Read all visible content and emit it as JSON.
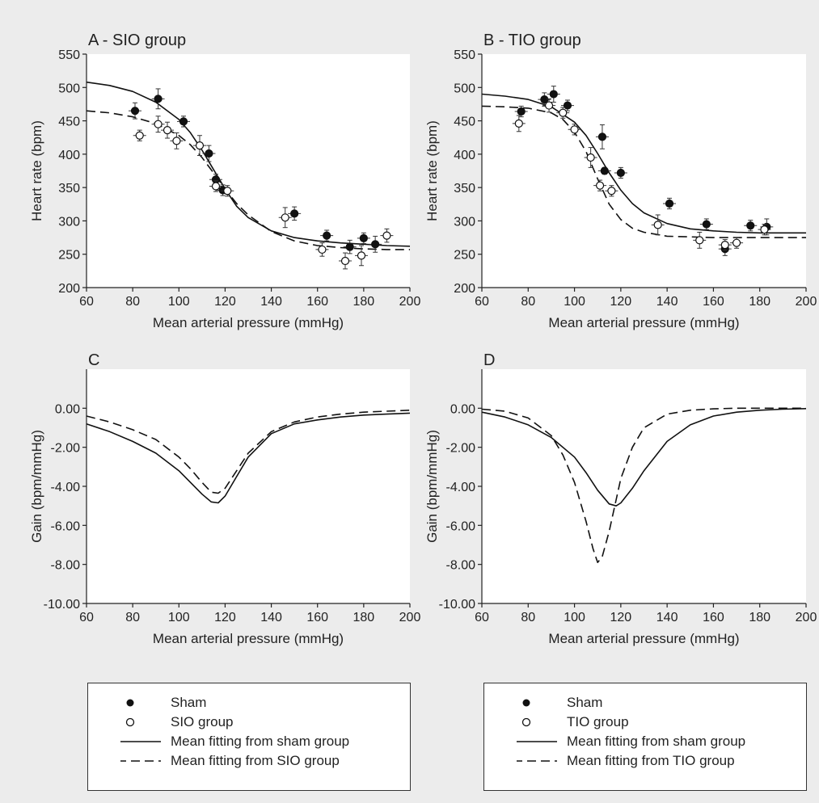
{
  "chart_data": [
    {
      "panel": "A",
      "type": "scatter",
      "title": "A - SIO group",
      "xlabel": "Mean arterial pressure (mmHg)",
      "ylabel": "Heart rate (bpm)",
      "xlim": [
        60,
        200
      ],
      "ylim": [
        200,
        550
      ],
      "xticks": [
        "60",
        "80",
        "100",
        "120",
        "140",
        "160",
        "180",
        "200"
      ],
      "yticks": [
        "200",
        "250",
        "300",
        "350",
        "400",
        "450",
        "500",
        "550"
      ],
      "series": [
        {
          "legend": "Sham",
          "marker": "filled-circle",
          "x": [
            81,
            91,
            102,
            113,
            116,
            119,
            150,
            164,
            174,
            180,
            185
          ],
          "y": [
            465,
            483,
            449,
            401,
            362,
            346,
            311,
            278,
            261,
            274,
            265
          ],
          "err": [
            12,
            15,
            8,
            12,
            8,
            8,
            10,
            8,
            10,
            8,
            12
          ]
        },
        {
          "legend": "SIO group",
          "marker": "open-circle",
          "x": [
            83,
            91,
            95,
            99,
            109,
            116,
            121,
            146,
            162,
            172,
            179,
            190
          ],
          "y": [
            428,
            445,
            436,
            420,
            413,
            352,
            345,
            305,
            257,
            240,
            248,
            278
          ],
          "err": [
            8,
            12,
            12,
            12,
            15,
            8,
            8,
            15,
            10,
            12,
            15,
            10
          ]
        },
        {
          "legend": "Mean fitting from sham group",
          "style": "solid",
          "x": [
            60,
            70,
            80,
            90,
            100,
            105,
            110,
            115,
            120,
            125,
            130,
            140,
            150,
            160,
            170,
            180,
            190,
            200
          ],
          "y": [
            508,
            503,
            494,
            478,
            452,
            432,
            406,
            377,
            348,
            322,
            305,
            285,
            275,
            270,
            267,
            265,
            263,
            262
          ]
        },
        {
          "legend": "Mean fitting from SIO group",
          "style": "dashed",
          "x": [
            60,
            70,
            80,
            90,
            100,
            105,
            110,
            115,
            120,
            125,
            130,
            140,
            150,
            160,
            170,
            180,
            190,
            200
          ],
          "y": [
            465,
            462,
            456,
            446,
            428,
            414,
            395,
            372,
            348,
            326,
            309,
            284,
            270,
            263,
            260,
            258,
            257,
            257
          ]
        }
      ]
    },
    {
      "panel": "B",
      "type": "scatter",
      "title": "B - TIO group",
      "xlabel": "Mean arterial pressure (mmHg)",
      "ylabel": "Heart rate (bpm)",
      "xlim": [
        60,
        200
      ],
      "ylim": [
        200,
        550
      ],
      "xticks": [
        "60",
        "80",
        "100",
        "120",
        "140",
        "160",
        "180",
        "200"
      ],
      "yticks": [
        "200",
        "250",
        "300",
        "350",
        "400",
        "450",
        "500",
        "550"
      ],
      "series": [
        {
          "legend": "Sham",
          "marker": "filled-circle",
          "x": [
            77,
            87,
            91,
            97,
            112,
            113,
            120,
            141,
            157,
            165,
            176,
            183
          ],
          "y": [
            464,
            482,
            490,
            473,
            426,
            375,
            372,
            326,
            295,
            258,
            293,
            291
          ],
          "err": [
            8,
            10,
            12,
            8,
            18,
            5,
            8,
            8,
            8,
            10,
            8,
            12
          ]
        },
        {
          "legend": "TIO group",
          "marker": "open-circle",
          "x": [
            76,
            89,
            95,
            100,
            107,
            111,
            116,
            136,
            154,
            165,
            170,
            182
          ],
          "y": [
            446,
            473,
            462,
            437,
            395,
            353,
            345,
            294,
            271,
            264,
            267,
            287
          ],
          "err": [
            12,
            10,
            8,
            8,
            15,
            8,
            8,
            15,
            12,
            8,
            8,
            8
          ]
        },
        {
          "legend": "Mean fitting from sham group",
          "style": "solid",
          "x": [
            60,
            70,
            80,
            90,
            100,
            105,
            110,
            115,
            120,
            125,
            130,
            140,
            150,
            160,
            170,
            180,
            190,
            200
          ],
          "y": [
            490,
            487,
            482,
            471,
            448,
            428,
            401,
            372,
            346,
            326,
            312,
            296,
            288,
            285,
            283,
            282,
            282,
            282
          ]
        },
        {
          "legend": "Mean fitting from TIO group",
          "style": "dashed",
          "x": [
            60,
            70,
            80,
            90,
            95,
            100,
            105,
            110,
            115,
            120,
            125,
            130,
            140,
            150,
            160,
            170,
            180,
            190,
            200
          ],
          "y": [
            472,
            471,
            469,
            462,
            452,
            433,
            404,
            363,
            325,
            302,
            289,
            283,
            277,
            276,
            275,
            275,
            275,
            275,
            275
          ]
        }
      ]
    },
    {
      "panel": "C",
      "type": "line",
      "title": "C",
      "xlabel": "Mean arterial pressure (mmHg)",
      "ylabel": "Gain (bpm/mmHg)",
      "xlim": [
        60,
        200
      ],
      "ylim": [
        -10,
        2
      ],
      "xticks": [
        "60",
        "80",
        "100",
        "120",
        "140",
        "160",
        "180",
        "200"
      ],
      "yticks": [
        "-10.00",
        "-8.00",
        "-6.00",
        "-4.00",
        "-2.00",
        "0.00"
      ],
      "series": [
        {
          "legend": "Mean fitting from sham group",
          "style": "solid",
          "x": [
            60,
            70,
            80,
            90,
            100,
            105,
            110,
            114,
            117,
            120,
            125,
            130,
            140,
            150,
            160,
            170,
            180,
            190,
            200
          ],
          "y": [
            -0.8,
            -1.2,
            -1.7,
            -2.3,
            -3.2,
            -3.8,
            -4.4,
            -4.8,
            -4.85,
            -4.5,
            -3.5,
            -2.5,
            -1.3,
            -0.8,
            -0.6,
            -0.45,
            -0.35,
            -0.3,
            -0.25
          ]
        },
        {
          "legend": "Mean fitting from SIO group",
          "style": "dashed",
          "x": [
            60,
            70,
            80,
            90,
            100,
            105,
            110,
            114,
            117,
            120,
            125,
            130,
            140,
            150,
            160,
            170,
            180,
            190,
            200
          ],
          "y": [
            -0.4,
            -0.7,
            -1.1,
            -1.6,
            -2.5,
            -3.1,
            -3.8,
            -4.3,
            -4.35,
            -4.1,
            -3.2,
            -2.3,
            -1.2,
            -0.7,
            -0.45,
            -0.3,
            -0.2,
            -0.15,
            -0.1
          ]
        }
      ]
    },
    {
      "panel": "D",
      "type": "line",
      "title": "D",
      "xlabel": "Mean arterial pressure (mmHg)",
      "ylabel": "Gain (bpm/mmHg)",
      "xlim": [
        60,
        200
      ],
      "ylim": [
        -10,
        2
      ],
      "xticks": [
        "60",
        "80",
        "100",
        "120",
        "140",
        "160",
        "180",
        "200"
      ],
      "yticks": [
        "-10.00",
        "-8.00",
        "-6.00",
        "-4.00",
        "-2.00",
        "0.00"
      ],
      "series": [
        {
          "legend": "Mean fitting from sham group",
          "style": "solid",
          "x": [
            60,
            70,
            80,
            90,
            100,
            105,
            110,
            115,
            118,
            120,
            125,
            130,
            140,
            150,
            160,
            170,
            180,
            190,
            200
          ],
          "y": [
            -0.2,
            -0.45,
            -0.85,
            -1.5,
            -2.5,
            -3.3,
            -4.2,
            -4.9,
            -5.0,
            -4.85,
            -4.1,
            -3.2,
            -1.7,
            -0.85,
            -0.4,
            -0.2,
            -0.1,
            -0.05,
            -0.02
          ]
        },
        {
          "legend": "Mean fitting from TIO group",
          "style": "dashed",
          "x": [
            60,
            70,
            80,
            90,
            95,
            100,
            105,
            108,
            110,
            112,
            115,
            120,
            125,
            130,
            140,
            150,
            160,
            170,
            180,
            190,
            200
          ],
          "y": [
            -0.05,
            -0.15,
            -0.5,
            -1.4,
            -2.4,
            -3.8,
            -5.8,
            -7.2,
            -7.9,
            -7.6,
            -6.3,
            -3.6,
            -2.0,
            -1.0,
            -0.3,
            -0.1,
            -0.03,
            0,
            0,
            0,
            0
          ]
        }
      ]
    }
  ],
  "legends": [
    {
      "items": [
        "Sham",
        "SIO group",
        "Mean fitting from sham group",
        "Mean fitting from SIO group"
      ]
    },
    {
      "items": [
        "Sham",
        "TIO group",
        "Mean fitting from sham group",
        "Mean fitting from TIO group"
      ]
    }
  ]
}
